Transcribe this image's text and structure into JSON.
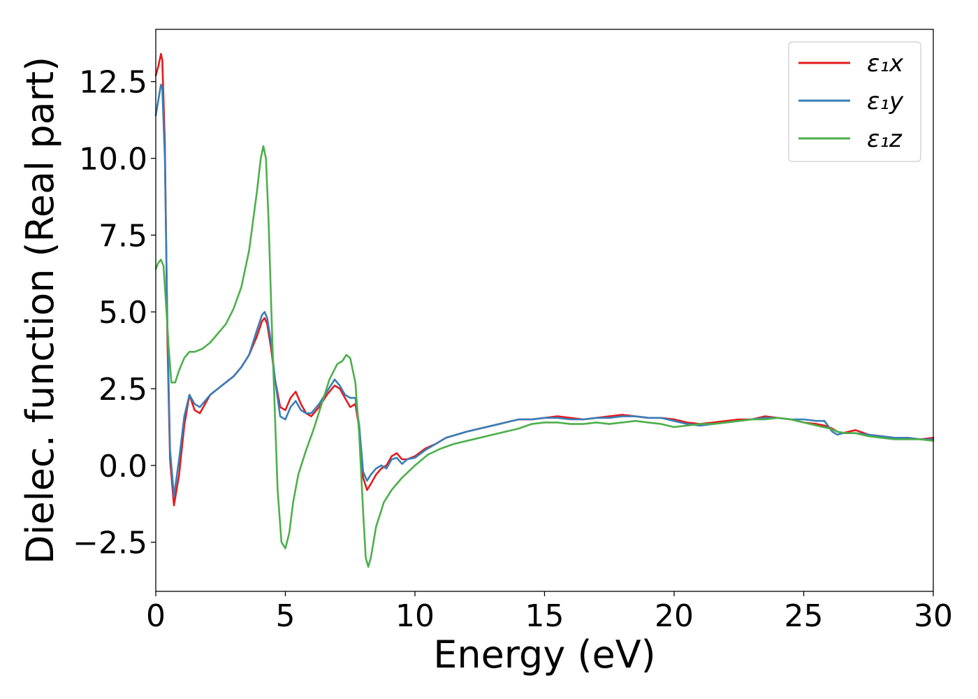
{
  "chart_data": {
    "type": "line",
    "title": "",
    "xlabel": "Energy (eV)",
    "ylabel": "Dielec. function (Real part)",
    "xlim": [
      0,
      30
    ],
    "ylim": [
      -4.1,
      14.2
    ],
    "xticks": [
      0,
      5,
      10,
      15,
      20,
      25,
      30
    ],
    "xtick_labels": [
      "0",
      "5",
      "10",
      "15",
      "20",
      "25",
      "30"
    ],
    "yticks": [
      -2.5,
      0.0,
      2.5,
      5.0,
      7.5,
      10.0,
      12.5
    ],
    "ytick_labels": [
      "−2.5",
      "0.0",
      "2.5",
      "5.0",
      "7.5",
      "10.0",
      "12.5"
    ],
    "grid": false,
    "legend_position": "top-right",
    "series": [
      {
        "name": "ε₁x",
        "color": "#e41a1c",
        "x": [
          0,
          0.1,
          0.2,
          0.25,
          0.35,
          0.45,
          0.55,
          0.7,
          0.9,
          1.1,
          1.3,
          1.5,
          1.7,
          1.9,
          2.1,
          2.4,
          2.7,
          3.0,
          3.3,
          3.6,
          3.9,
          4.1,
          4.2,
          4.3,
          4.45,
          4.6,
          4.8,
          5.0,
          5.2,
          5.4,
          5.6,
          5.8,
          6.0,
          6.3,
          6.6,
          6.9,
          7.1,
          7.3,
          7.5,
          7.7,
          7.85,
          8.0,
          8.15,
          8.3,
          8.5,
          8.7,
          8.9,
          9.1,
          9.3,
          9.5,
          9.7,
          10.0,
          10.4,
          10.8,
          11.2,
          11.6,
          12.0,
          12.5,
          13.0,
          13.5,
          14.0,
          14.5,
          15.0,
          15.5,
          16.0,
          16.5,
          17.0,
          17.5,
          18.0,
          18.5,
          19.0,
          19.5,
          20.0,
          20.5,
          21.0,
          21.5,
          22.0,
          22.5,
          23.0,
          23.5,
          24.0,
          24.5,
          25.0,
          25.5,
          25.8,
          26.1,
          26.3,
          26.5,
          27.0,
          27.5,
          28.0,
          28.5,
          29.0,
          29.5,
          30.0
        ],
        "values": [
          12.7,
          13.0,
          13.4,
          13.2,
          10.5,
          4.0,
          0.2,
          -1.3,
          -0.3,
          1.3,
          2.3,
          1.8,
          1.7,
          2.0,
          2.3,
          2.5,
          2.7,
          2.9,
          3.2,
          3.6,
          4.2,
          4.7,
          4.8,
          4.6,
          3.8,
          2.8,
          1.9,
          1.8,
          2.2,
          2.4,
          2.0,
          1.7,
          1.6,
          1.9,
          2.3,
          2.6,
          2.5,
          2.2,
          1.9,
          2.0,
          1.2,
          -0.4,
          -0.8,
          -0.6,
          -0.3,
          -0.1,
          0.0,
          0.3,
          0.4,
          0.2,
          0.2,
          0.3,
          0.55,
          0.7,
          0.9,
          1.0,
          1.1,
          1.2,
          1.3,
          1.4,
          1.5,
          1.5,
          1.55,
          1.6,
          1.55,
          1.5,
          1.55,
          1.6,
          1.65,
          1.6,
          1.55,
          1.55,
          1.5,
          1.4,
          1.35,
          1.4,
          1.45,
          1.5,
          1.5,
          1.6,
          1.55,
          1.5,
          1.4,
          1.35,
          1.3,
          1.2,
          1.1,
          1.05,
          1.15,
          1.0,
          0.95,
          0.9,
          0.9,
          0.85,
          0.9
        ]
      },
      {
        "name": "ε₁y",
        "color": "#377eb8",
        "x": [
          0,
          0.1,
          0.2,
          0.25,
          0.35,
          0.45,
          0.55,
          0.7,
          0.9,
          1.1,
          1.3,
          1.5,
          1.7,
          1.9,
          2.1,
          2.4,
          2.7,
          3.0,
          3.3,
          3.6,
          3.9,
          4.1,
          4.2,
          4.3,
          4.45,
          4.6,
          4.8,
          5.0,
          5.2,
          5.4,
          5.6,
          5.8,
          6.0,
          6.3,
          6.6,
          6.9,
          7.1,
          7.3,
          7.5,
          7.7,
          7.85,
          8.0,
          8.15,
          8.3,
          8.5,
          8.7,
          8.9,
          9.1,
          9.3,
          9.5,
          9.7,
          10.0,
          10.4,
          10.8,
          11.2,
          11.6,
          12.0,
          12.5,
          13.0,
          13.5,
          14.0,
          14.5,
          15.0,
          15.5,
          16.0,
          16.5,
          17.0,
          17.5,
          18.0,
          18.5,
          19.0,
          19.5,
          20.0,
          20.5,
          21.0,
          21.5,
          22.0,
          22.5,
          23.0,
          23.5,
          24.0,
          24.5,
          25.0,
          25.5,
          25.8,
          26.1,
          26.3,
          26.5,
          27.0,
          27.5,
          28.0,
          28.5,
          29.0,
          29.5,
          30.0
        ],
        "values": [
          11.4,
          11.9,
          12.4,
          12.3,
          10.0,
          4.5,
          0.5,
          -1.0,
          0.2,
          1.6,
          2.3,
          2.0,
          1.9,
          2.1,
          2.3,
          2.5,
          2.7,
          2.9,
          3.2,
          3.6,
          4.4,
          4.9,
          5.0,
          4.8,
          4.0,
          2.8,
          1.6,
          1.5,
          1.9,
          2.1,
          1.8,
          1.7,
          1.7,
          2.0,
          2.4,
          2.8,
          2.6,
          2.3,
          2.2,
          2.2,
          1.3,
          -0.2,
          -0.5,
          -0.3,
          -0.1,
          0.0,
          -0.1,
          0.2,
          0.25,
          0.05,
          0.2,
          0.25,
          0.5,
          0.7,
          0.9,
          1.0,
          1.1,
          1.2,
          1.3,
          1.4,
          1.5,
          1.5,
          1.55,
          1.55,
          1.5,
          1.5,
          1.55,
          1.55,
          1.6,
          1.6,
          1.55,
          1.55,
          1.45,
          1.35,
          1.3,
          1.35,
          1.4,
          1.45,
          1.5,
          1.55,
          1.55,
          1.5,
          1.5,
          1.45,
          1.45,
          1.1,
          1.0,
          1.05,
          1.05,
          1.0,
          0.95,
          0.9,
          0.9,
          0.85,
          0.85
        ]
      },
      {
        "name": "ε₁z",
        "color": "#4daf4a",
        "x": [
          0,
          0.1,
          0.2,
          0.3,
          0.4,
          0.5,
          0.6,
          0.75,
          0.9,
          1.1,
          1.3,
          1.5,
          1.8,
          2.1,
          2.4,
          2.7,
          3.0,
          3.3,
          3.6,
          3.9,
          4.05,
          4.15,
          4.25,
          4.35,
          4.5,
          4.7,
          4.85,
          5.0,
          5.15,
          5.3,
          5.5,
          5.8,
          6.1,
          6.4,
          6.7,
          7.0,
          7.2,
          7.35,
          7.5,
          7.7,
          7.85,
          8.0,
          8.1,
          8.2,
          8.3,
          8.5,
          8.8,
          9.1,
          9.5,
          10.0,
          10.5,
          11.0,
          11.5,
          12.0,
          12.5,
          13.0,
          13.5,
          14.0,
          14.5,
          15.0,
          15.5,
          16.0,
          16.5,
          17.0,
          17.5,
          18.0,
          18.5,
          19.0,
          19.5,
          20.0,
          20.5,
          21.0,
          21.5,
          22.0,
          22.5,
          23.0,
          23.5,
          24.0,
          24.5,
          25.0,
          25.5,
          26.0,
          26.3,
          26.6,
          27.0,
          27.5,
          28.0,
          28.5,
          29.0,
          29.5,
          30.0
        ],
        "values": [
          6.4,
          6.6,
          6.7,
          6.5,
          5.2,
          3.8,
          2.7,
          2.7,
          3.1,
          3.5,
          3.7,
          3.7,
          3.8,
          4.0,
          4.3,
          4.6,
          5.1,
          5.8,
          7.0,
          8.9,
          10.0,
          10.4,
          10.0,
          8.0,
          4.0,
          -0.8,
          -2.5,
          -2.7,
          -2.2,
          -1.2,
          -0.3,
          0.5,
          1.2,
          2.0,
          2.8,
          3.3,
          3.4,
          3.6,
          3.5,
          2.7,
          1.0,
          -1.5,
          -3.0,
          -3.3,
          -3.0,
          -2.0,
          -1.2,
          -0.8,
          -0.4,
          0.0,
          0.35,
          0.55,
          0.7,
          0.8,
          0.9,
          1.0,
          1.1,
          1.2,
          1.35,
          1.4,
          1.4,
          1.35,
          1.35,
          1.4,
          1.35,
          1.4,
          1.45,
          1.4,
          1.35,
          1.25,
          1.3,
          1.35,
          1.35,
          1.4,
          1.45,
          1.5,
          1.5,
          1.55,
          1.5,
          1.4,
          1.3,
          1.2,
          1.1,
          1.05,
          1.05,
          0.95,
          0.9,
          0.85,
          0.85,
          0.85,
          0.8
        ]
      }
    ]
  }
}
